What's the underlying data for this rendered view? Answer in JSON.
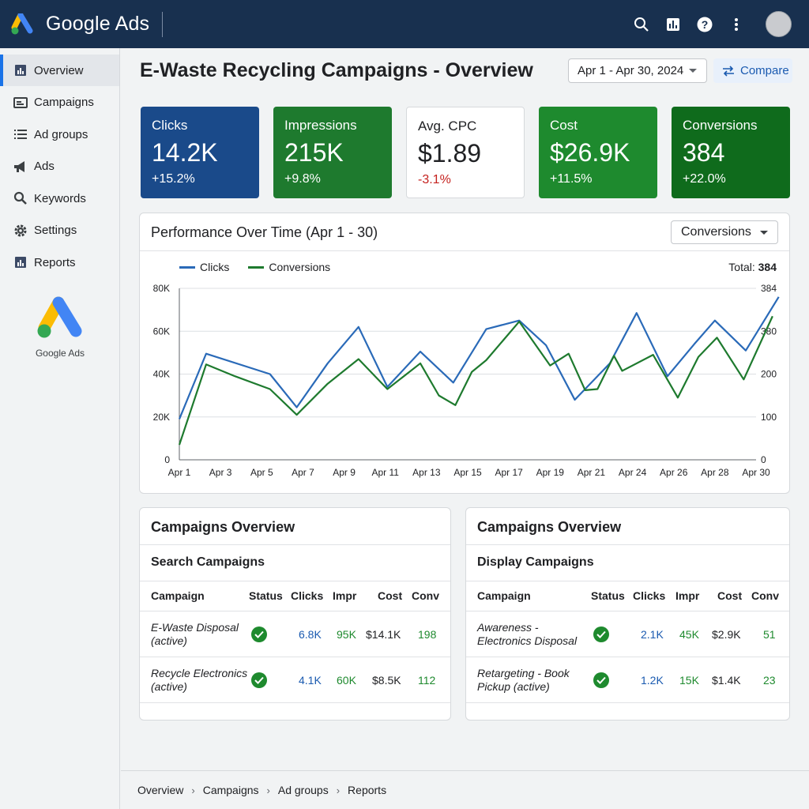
{
  "app": {
    "brand": "Google Ads",
    "side_logo_text": "Google Ads"
  },
  "topbar": {
    "icons": [
      "search-icon",
      "chart-icon",
      "help-icon",
      "more-vert-icon"
    ]
  },
  "sidebar": {
    "items": [
      {
        "label": "Overview",
        "icon": "bar-chart-icon",
        "active": true
      },
      {
        "label": "Campaigns",
        "icon": "campaigns-icon"
      },
      {
        "label": "Ad groups",
        "icon": "list-icon"
      },
      {
        "label": "Ads",
        "icon": "megaphone-icon"
      },
      {
        "label": "Keywords",
        "icon": "key-search-icon"
      },
      {
        "label": "Settings",
        "icon": "gear-icon"
      },
      {
        "label": "Reports",
        "icon": "report-icon"
      }
    ]
  },
  "header": {
    "title": "E-Waste Recycling Campaigns - Overview",
    "date_range": "Apr 1 - Apr 30, 2024",
    "compare_label": "Compare"
  },
  "metrics": [
    {
      "label": "Clicks",
      "value": "14.2K",
      "change": "+15.2%",
      "bg": "#1a4a8a",
      "text": "#ffffff",
      "change_color": "#ffffff"
    },
    {
      "label": "Impressions",
      "value": "215K",
      "change": "+9.8%",
      "bg": "#1e7a2e",
      "text": "#ffffff",
      "change_color": "#ffffff"
    },
    {
      "label": "Avg. CPC",
      "value": "$1.89",
      "change": "-3.1%",
      "bg": "#ffffff",
      "text": "#202124",
      "change_color": "#c5221f"
    },
    {
      "label": "Cost",
      "value": "$26.9K",
      "change": "+11.5%",
      "bg": "#1e8a2e",
      "text": "#ffffff",
      "change_color": "#ffffff"
    },
    {
      "label": "Conversions",
      "value": "384",
      "change": "+22.0%",
      "bg": "#0f6b1c",
      "text": "#ffffff",
      "change_color": "#ffffff"
    }
  ],
  "performance": {
    "title": "Performance Over Time (Apr 1 - 30)",
    "dropdown": "Conversions",
    "total_label": "Total:",
    "total_value": "384"
  },
  "chart_data": {
    "type": "line",
    "x": [
      "Apr 1",
      "Apr 3",
      "Apr 5",
      "Apr 7",
      "Apr 9",
      "Apr 11",
      "Apr 13",
      "Apr 15",
      "Apr 17",
      "Apr 19",
      "Apr 21",
      "Apr 24",
      "Apr 26",
      "Apr 28",
      "Apr 30"
    ],
    "x_labels": [
      "Apr 1",
      "Apr 3",
      "Apr 5",
      "Apr 7",
      "Apr 9",
      "Apr 11",
      "Apr 13",
      "Apr 15",
      "Apr 17",
      "Apr 19",
      "Apr 21",
      "Apr 24",
      "Apr 26",
      "Apr 28",
      "Apr 30"
    ],
    "y_left_ticks": [
      "0",
      "20K",
      "40K",
      "60K",
      "80K"
    ],
    "y_right_ticks": [
      "0",
      "100",
      "200",
      "380",
      "384"
    ],
    "ylim": [
      0,
      80000
    ],
    "grid": true,
    "legend_position": "top-left",
    "series": [
      {
        "name": "Clicks",
        "color": "#2a6ab8",
        "points": [
          [
            0,
            19000
          ],
          [
            0.65,
            49500
          ],
          [
            2.2,
            40000
          ],
          [
            2.85,
            24500
          ],
          [
            3.6,
            45000
          ],
          [
            4.35,
            62000
          ],
          [
            5.05,
            34000
          ],
          [
            5.85,
            50500
          ],
          [
            6.65,
            36000
          ],
          [
            7.45,
            61000
          ],
          [
            8.25,
            65000
          ],
          [
            8.9,
            53500
          ],
          [
            9.6,
            28000
          ],
          [
            10.45,
            45000
          ],
          [
            11.1,
            68500
          ],
          [
            11.85,
            39000
          ],
          [
            12.5,
            54000
          ],
          [
            13.0,
            65000
          ],
          [
            13.75,
            51000
          ],
          [
            14.55,
            76000
          ]
        ]
      },
      {
        "name": "Conversions",
        "color": "#1e7a2e",
        "points": [
          [
            0,
            7000
          ],
          [
            0.65,
            44500
          ],
          [
            1.35,
            39000
          ],
          [
            2.2,
            33000
          ],
          [
            2.85,
            21000
          ],
          [
            3.6,
            35500
          ],
          [
            4.35,
            47000
          ],
          [
            5.05,
            33000
          ],
          [
            5.85,
            45000
          ],
          [
            6.3,
            30000
          ],
          [
            6.7,
            25500
          ],
          [
            7.1,
            41000
          ],
          [
            7.45,
            46500
          ],
          [
            8.25,
            64500
          ],
          [
            9.0,
            44000
          ],
          [
            9.45,
            49500
          ],
          [
            9.85,
            32500
          ],
          [
            10.15,
            33000
          ],
          [
            10.55,
            48500
          ],
          [
            10.75,
            41500
          ],
          [
            11.5,
            49000
          ],
          [
            12.1,
            29000
          ],
          [
            12.6,
            48000
          ],
          [
            13.05,
            57000
          ],
          [
            13.7,
            37500
          ],
          [
            14.4,
            67000
          ]
        ]
      }
    ]
  },
  "search_table": {
    "title": "Campaigns Overview",
    "subtitle": "Search Campaigns",
    "headers": [
      "Campaign",
      "Status",
      "Clicks",
      "Impr",
      "Cost",
      "Conv"
    ],
    "rows": [
      {
        "name": "E-Waste Disposal (active)",
        "clicks": "6.8K",
        "impr": "95K",
        "cost": "$14.1K",
        "conv": "198"
      },
      {
        "name": "Recycle Electronics (active)",
        "clicks": "4.1K",
        "impr": "60K",
        "cost": "$8.5K",
        "conv": "112"
      }
    ]
  },
  "display_table": {
    "title": "Campaigns Overview",
    "subtitle": "Display Campaigns",
    "headers": [
      "Campaign",
      "Status",
      "Clicks",
      "Impr",
      "Cost",
      "Conv"
    ],
    "rows": [
      {
        "name": "Awareness - Electronics Disposal",
        "clicks": "2.1K",
        "impr": "45K",
        "cost": "$2.9K",
        "conv": "51"
      },
      {
        "name": "Retargeting - Book Pickup (active)",
        "clicks": "1.2K",
        "impr": "15K",
        "cost": "$1.4K",
        "conv": "23"
      }
    ]
  },
  "breadcrumb": [
    "Overview",
    "Campaigns",
    "Ad groups",
    "Reports"
  ]
}
